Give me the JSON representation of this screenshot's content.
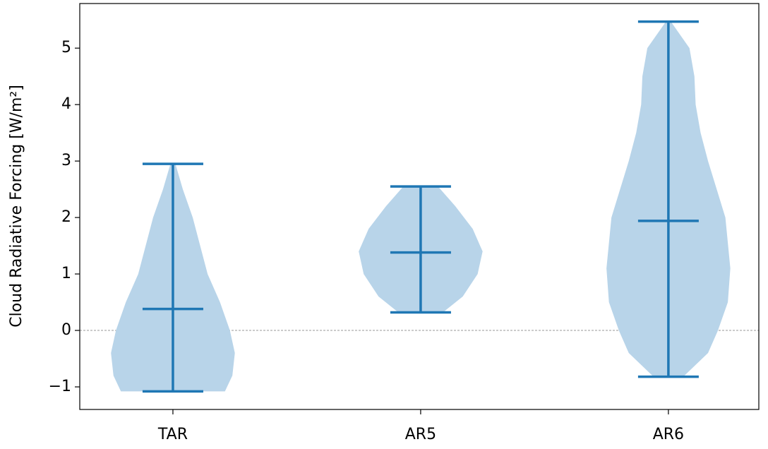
{
  "chart_data": {
    "type": "violin",
    "ylabel": "Cloud Radiative Forcing [W/m²]",
    "categories": [
      "TAR",
      "AR5",
      "AR6"
    ],
    "min": [
      -1.08,
      0.32,
      -0.82
    ],
    "max": [
      2.95,
      2.55,
      5.47
    ],
    "median": [
      0.38,
      1.38,
      1.94
    ],
    "profiles": [
      {
        "y": [
          -1.08,
          -0.8,
          -0.4,
          0,
          0.5,
          1,
          1.5,
          2,
          2.5,
          2.95
        ],
        "half_width": [
          0.21,
          0.24,
          0.25,
          0.23,
          0.19,
          0.14,
          0.11,
          0.08,
          0.04,
          0.01
        ]
      },
      {
        "y": [
          0.32,
          0.6,
          1.0,
          1.4,
          1.8,
          2.2,
          2.55
        ],
        "half_width": [
          0.09,
          0.17,
          0.23,
          0.25,
          0.21,
          0.14,
          0.07
        ]
      },
      {
        "y": [
          -0.82,
          -0.4,
          0,
          0.5,
          1.1,
          2,
          3,
          3.5,
          4,
          4.5,
          5,
          5.47
        ],
        "half_width": [
          0.06,
          0.16,
          0.2,
          0.24,
          0.25,
          0.23,
          0.16,
          0.13,
          0.11,
          0.105,
          0.085,
          0.01
        ]
      }
    ],
    "body_color": "#b8d4e9",
    "line_color": "#1f77b4",
    "hline": 0,
    "xlim": [
      0.624,
      3.365
    ],
    "ylim": [
      -1.4,
      5.79
    ],
    "yticks": [
      {
        "value": -1,
        "label": "−1"
      },
      0,
      1,
      2,
      3,
      4,
      5
    ]
  }
}
